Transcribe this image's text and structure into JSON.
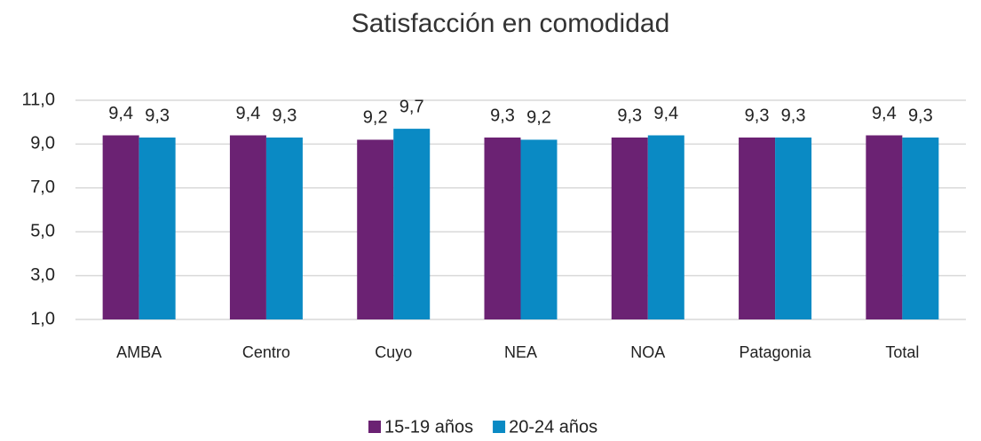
{
  "chart_data": {
    "type": "bar",
    "title": "Satisfacción en comodidad",
    "categories": [
      "AMBA",
      "Centro",
      "Cuyo",
      "NEA",
      "NOA",
      "Patagonia",
      "Total"
    ],
    "series": [
      {
        "name": "15-19 años",
        "color": "#6b2273",
        "values": [
          9.4,
          9.4,
          9.2,
          9.3,
          9.3,
          9.3,
          9.4
        ],
        "value_labels": [
          "9,4",
          "9,4",
          "9,2",
          "9,3",
          "9,3",
          "9,3",
          "9,4"
        ]
      },
      {
        "name": "20-24 años",
        "color": "#0a8ac4",
        "values": [
          9.3,
          9.3,
          9.7,
          9.2,
          9.4,
          9.3,
          9.3
        ],
        "value_labels": [
          "9,3",
          "9,3",
          "9,7",
          "9,2",
          "9,4",
          "9,3",
          "9,3"
        ]
      }
    ],
    "ylim": [
      1,
      11
    ],
    "yticks": [
      {
        "value": 1,
        "label": "1,0"
      },
      {
        "value": 3,
        "label": "3,0"
      },
      {
        "value": 5,
        "label": "5,0"
      },
      {
        "value": 7,
        "label": "7,0"
      },
      {
        "value": 9,
        "label": "9,0"
      },
      {
        "value": 11,
        "label": "11,0"
      }
    ],
    "grid": true,
    "legend": "bottom"
  }
}
